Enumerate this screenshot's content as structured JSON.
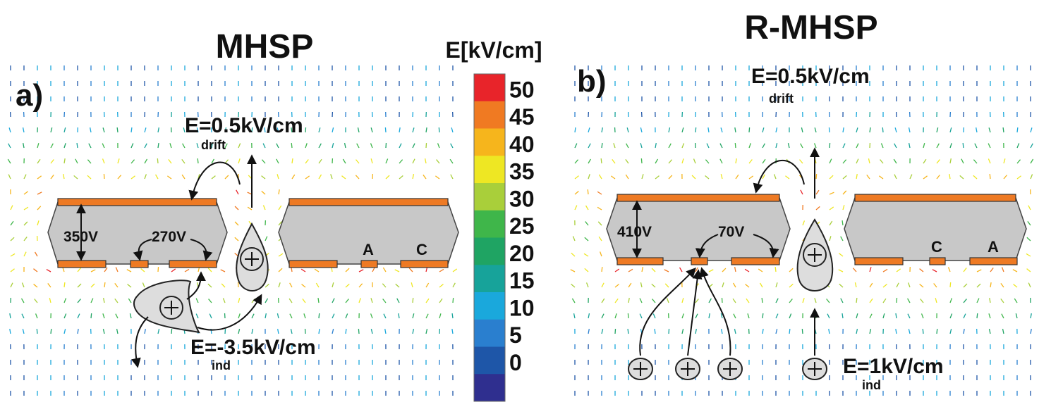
{
  "panels": [
    {
      "label": "a)",
      "title": "MHSP",
      "electrodes": [
        "A",
        "C"
      ],
      "voltages": [
        "350V",
        "270V"
      ],
      "field_top": {
        "text": "E=0.5kV/cm",
        "sub": "drift"
      },
      "field_bottom": {
        "text": "E=-3.5kV/cm",
        "sub": "ind"
      }
    },
    {
      "label": "b)",
      "title": "R-MHSP",
      "electrodes": [
        "C",
        "A"
      ],
      "voltages": [
        "410V",
        "70V"
      ],
      "field_top": {
        "text": "E=0.5kV/cm",
        "sub": "drift"
      },
      "field_bottom": {
        "text": "E=1kV/cm",
        "sub": "ind"
      }
    }
  ],
  "colorbar": {
    "label": "E[kV/cm]",
    "ticks": [
      50,
      45,
      40,
      35,
      30,
      25,
      20,
      15,
      10,
      5,
      0
    ],
    "colors": [
      "#e8242a",
      "#f07a22",
      "#f6b51c",
      "#eee723",
      "#a9cf3a",
      "#3fb64a",
      "#1fa463",
      "#17a39a",
      "#1aa8dc",
      "#2a7fcf",
      "#1e56a8",
      "#2f2f8f"
    ]
  }
}
